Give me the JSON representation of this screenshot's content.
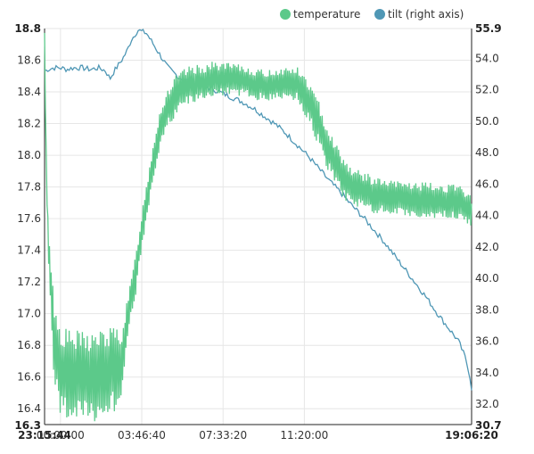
{
  "chart_data": {
    "type": "line",
    "legend": {
      "placement": "top-right",
      "items": [
        {
          "label": "temperature",
          "color": "#5cc98a"
        },
        {
          "label": "tilt (right axis)",
          "color": "#4f97b5"
        }
      ]
    },
    "x_axis": {
      "type": "time",
      "min": "23:15:44",
      "max": "19:06:20",
      "ticks": [
        "23:15:44",
        "00:00:00",
        "03:46:40",
        "07:33:20",
        "11:20:00",
        "19:06:20"
      ],
      "bold_ticks": [
        "23:15:44",
        "19:06:20"
      ],
      "min_hours": -0.7378,
      "max_hours": 19.1056,
      "tick_hours": [
        -0.7378,
        0,
        3.7778,
        7.5556,
        11.3333,
        19.1056
      ]
    },
    "y_axis_left": {
      "min": 16.3,
      "max": 18.8,
      "ticks": [
        "16.3",
        "16.4",
        "16.6",
        "16.8",
        "17.0",
        "17.2",
        "17.4",
        "17.6",
        "17.8",
        "18.0",
        "18.2",
        "18.4",
        "18.6",
        "18.8"
      ],
      "bold_ticks": [
        "16.3",
        "18.8"
      ]
    },
    "y_axis_right": {
      "min": 30.7,
      "max": 55.9,
      "ticks": [
        "30.7",
        "32.0",
        "34.0",
        "36.0",
        "38.0",
        "40.0",
        "42.0",
        "44.0",
        "46.0",
        "48.0",
        "50.0",
        "52.0",
        "54.0",
        "55.9"
      ],
      "bold_ticks": [
        "30.7",
        "55.9"
      ]
    },
    "grid": true,
    "series": [
      {
        "name": "temperature",
        "axis": "left",
        "color": "#5cc98a",
        "x": [
          -0.74,
          -0.7,
          -0.65,
          -0.6,
          -0.55,
          -0.5,
          -0.45,
          -0.4,
          -0.35,
          -0.3,
          -0.25,
          -0.2,
          0.0,
          0.5,
          1.0,
          1.5,
          2.0,
          2.5,
          2.9,
          3.0,
          3.1,
          3.3,
          3.5,
          3.7,
          4.0,
          4.3,
          4.6,
          5.0,
          5.4,
          5.8,
          6.2,
          6.6,
          7.0,
          7.5,
          8.0,
          8.5,
          9.0,
          9.5,
          10.0,
          10.5,
          11.0,
          11.5,
          12.0,
          12.4,
          12.8,
          13.2,
          13.6,
          14.0,
          14.5,
          15.0,
          15.5,
          16.0,
          16.5,
          17.0,
          17.5,
          18.0,
          18.5,
          18.8,
          19.0,
          19.1
        ],
        "values": [
          18.8,
          18.3,
          17.9,
          17.6,
          17.45,
          17.3,
          17.15,
          17.05,
          16.95,
          16.85,
          16.8,
          16.75,
          16.65,
          16.6,
          16.6,
          16.6,
          16.62,
          16.65,
          16.7,
          16.85,
          16.95,
          17.1,
          17.25,
          17.45,
          17.7,
          17.95,
          18.15,
          18.3,
          18.38,
          18.43,
          18.45,
          18.46,
          18.48,
          18.48,
          18.48,
          18.47,
          18.45,
          18.44,
          18.45,
          18.46,
          18.45,
          18.35,
          18.2,
          18.05,
          17.95,
          17.85,
          17.8,
          17.78,
          17.75,
          17.74,
          17.73,
          17.73,
          17.72,
          17.72,
          17.71,
          17.71,
          17.7,
          17.68,
          17.66,
          17.6
        ],
        "oscillation": [
          0,
          0,
          0.05,
          0.08,
          0.12,
          0.15,
          0.18,
          0.2,
          0.22,
          0.24,
          0.25,
          0.25,
          0.26,
          0.27,
          0.27,
          0.27,
          0.26,
          0.25,
          0.2,
          0.15,
          0.12,
          0.12,
          0.12,
          0.12,
          0.12,
          0.12,
          0.12,
          0.12,
          0.12,
          0.11,
          0.11,
          0.1,
          0.1,
          0.1,
          0.09,
          0.09,
          0.09,
          0.09,
          0.09,
          0.09,
          0.1,
          0.12,
          0.13,
          0.13,
          0.12,
          0.12,
          0.11,
          0.11,
          0.11,
          0.1,
          0.1,
          0.1,
          0.1,
          0.1,
          0.1,
          0.1,
          0.1,
          0.1,
          0.1,
          0.1
        ]
      },
      {
        "name": "tilt (right axis)",
        "axis": "right",
        "color": "#4f97b5",
        "x": [
          -0.74,
          -0.7,
          -0.6,
          -0.3,
          0.0,
          0.3,
          0.6,
          1.0,
          1.4,
          1.8,
          2.1,
          2.3,
          2.5,
          2.7,
          2.9,
          3.1,
          3.3,
          3.6,
          4.0,
          4.5,
          5.0,
          5.5,
          6.0,
          6.5,
          7.0,
          7.5,
          8.0,
          8.5,
          9.0,
          9.5,
          10.0,
          10.5,
          11.0,
          11.5,
          12.0,
          12.5,
          13.0,
          13.5,
          14.0,
          14.5,
          15.0,
          15.5,
          16.0,
          16.5,
          17.0,
          17.5,
          18.0,
          18.5,
          18.8,
          19.0,
          19.1
        ],
        "values": [
          53.2,
          53.2,
          53.3,
          53.4,
          53.4,
          53.3,
          53.4,
          53.4,
          53.3,
          53.4,
          53.2,
          52.7,
          53.2,
          53.6,
          54.0,
          54.5,
          55.2,
          55.8,
          55.6,
          54.5,
          53.4,
          52.8,
          52.5,
          52.3,
          52.1,
          51.8,
          51.5,
          51.2,
          50.8,
          50.3,
          49.8,
          49.2,
          48.5,
          47.8,
          47.0,
          46.2,
          45.5,
          44.7,
          44.0,
          43.2,
          42.4,
          41.5,
          40.6,
          39.7,
          38.8,
          37.8,
          36.9,
          36.0,
          35.0,
          34.0,
          33.0
        ]
      }
    ]
  }
}
